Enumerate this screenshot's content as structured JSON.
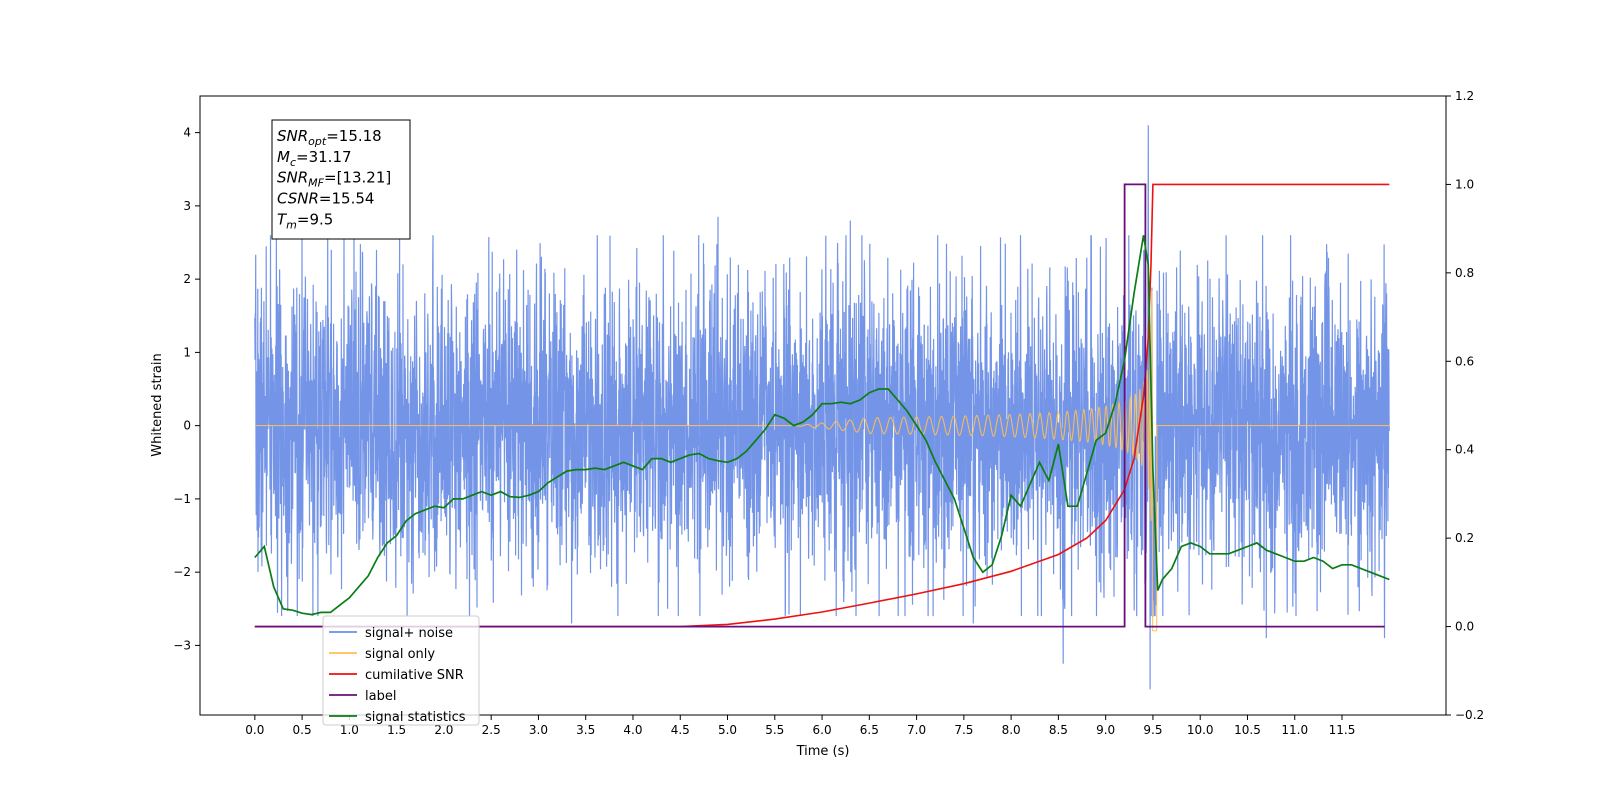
{
  "chart_data": {
    "type": "line",
    "title": "",
    "xlabel": "Time (s)",
    "ylabel": "Whitened strain",
    "xlim": [
      -0.58,
      12.6
    ],
    "ylim": [
      -3.95,
      4.5
    ],
    "y2lim": [
      -0.2,
      1.2
    ],
    "x_ticks": [
      0.0,
      0.5,
      1.0,
      1.5,
      2.0,
      2.5,
      3.0,
      3.5,
      4.0,
      4.5,
      5.0,
      5.5,
      6.0,
      6.5,
      7.0,
      7.5,
      8.0,
      8.5,
      9.0,
      9.5,
      10.0,
      10.5,
      11.0,
      11.5
    ],
    "x_tick_labels": [
      "0.0",
      "0.5",
      "1.0",
      "1.5",
      "2.0",
      "2.5",
      "3.0",
      "3.5",
      "4.0",
      "4.5",
      "5.0",
      "5.5",
      "6.0",
      "6.5",
      "7.0",
      "7.5",
      "8.0",
      "8.5",
      "9.0",
      "9.5",
      "10.0",
      "10.5",
      "11.0",
      "11.5"
    ],
    "y_ticks": [
      -3,
      -2,
      -1,
      0,
      1,
      2,
      3,
      4
    ],
    "y_tick_labels": [
      "−3",
      "−2",
      "−1",
      "0",
      "1",
      "2",
      "3",
      "4"
    ],
    "y2_ticks": [
      -0.2,
      0.0,
      0.2,
      0.4,
      0.6,
      0.8,
      1.0,
      1.2
    ],
    "y2_tick_labels": [
      "−0.2",
      "0.0",
      "0.2",
      "0.4",
      "0.6",
      "0.8",
      "1.0",
      "1.2"
    ],
    "grid": false,
    "legend_position": "lower-left",
    "annotation": {
      "lines": [
        {
          "sym": "SNR",
          "sub": "opt",
          "val": "=15.18"
        },
        {
          "sym": "M",
          "sub": "c",
          "val": "=31.17"
        },
        {
          "sym": "SNR",
          "sub": "MF",
          "val": "=[13.21]"
        },
        {
          "sym": "CSNR",
          "sub": "",
          "val": "=15.54"
        },
        {
          "sym": "T",
          "sub": "m",
          "val": "=9.5"
        }
      ]
    },
    "series": [
      {
        "name": "signal+ noise",
        "color": "#6c8ee6",
        "axis": "left",
        "kind": "noise",
        "x_range": [
          0.0,
          12.0
        ],
        "typical_amplitude": 1.3,
        "extremes": [
          {
            "x": 0.12,
            "y": 2.45
          },
          {
            "x": 0.45,
            "y": -2.6
          },
          {
            "x": 0.5,
            "y": 2.6
          },
          {
            "x": 3.35,
            "y": -2.7
          },
          {
            "x": 4.9,
            "y": 2.85
          },
          {
            "x": 6.3,
            "y": 2.8
          },
          {
            "x": 7.6,
            "y": -2.7
          },
          {
            "x": 8.55,
            "y": -3.25
          },
          {
            "x": 9.45,
            "y": 4.1
          },
          {
            "x": 9.47,
            "y": -3.6
          },
          {
            "x": 10.7,
            "y": -2.9
          },
          {
            "x": 11.95,
            "y": -2.9
          }
        ]
      },
      {
        "name": "signal only",
        "color": "#ffbf55",
        "axis": "left",
        "kind": "chirp",
        "x_start": 5.7,
        "x_merger": 9.5,
        "peak_amplitude": 3.3
      },
      {
        "name": "cumilative SNR",
        "color": "#ee1111",
        "axis": "right",
        "x": [
          0.0,
          4.5,
          5.0,
          5.5,
          6.0,
          6.5,
          7.0,
          7.5,
          8.0,
          8.5,
          8.8,
          9.0,
          9.2,
          9.3,
          9.4,
          9.45,
          9.48,
          9.5,
          12.0
        ],
        "values": [
          0.0,
          0.0,
          0.005,
          0.017,
          0.033,
          0.053,
          0.074,
          0.097,
          0.125,
          0.163,
          0.2,
          0.24,
          0.31,
          0.38,
          0.52,
          0.65,
          0.82,
          1.0,
          1.0
        ]
      },
      {
        "name": "label",
        "color": "#6a0f7a",
        "axis": "right",
        "x": [
          0.0,
          9.2,
          9.2,
          9.42,
          9.42,
          11.95
        ],
        "values": [
          0.0,
          0.0,
          1.0,
          1.0,
          0.0,
          0.0
        ]
      },
      {
        "name": "signal statistics",
        "color": "#0b7d15",
        "axis": "left",
        "x": [
          0.0,
          0.1,
          0.2,
          0.3,
          0.4,
          0.5,
          0.6,
          0.7,
          0.8,
          0.9,
          1.0,
          1.1,
          1.2,
          1.3,
          1.4,
          1.5,
          1.6,
          1.7,
          1.8,
          1.9,
          2.0,
          2.1,
          2.2,
          2.3,
          2.4,
          2.5,
          2.6,
          2.7,
          2.8,
          2.9,
          3.0,
          3.1,
          3.2,
          3.3,
          3.4,
          3.5,
          3.6,
          3.7,
          3.8,
          3.9,
          4.0,
          4.1,
          4.2,
          4.3,
          4.4,
          4.5,
          4.6,
          4.7,
          4.8,
          4.9,
          5.0,
          5.1,
          5.2,
          5.3,
          5.4,
          5.5,
          5.6,
          5.7,
          5.8,
          5.9,
          6.0,
          6.1,
          6.2,
          6.3,
          6.4,
          6.5,
          6.6,
          6.7,
          6.8,
          6.9,
          7.0,
          7.1,
          7.2,
          7.3,
          7.4,
          7.5,
          7.6,
          7.7,
          7.8,
          7.9,
          8.0,
          8.1,
          8.2,
          8.3,
          8.4,
          8.5,
          8.6,
          8.7,
          8.8,
          8.9,
          9.0,
          9.1,
          9.2,
          9.3,
          9.4,
          9.45,
          9.5,
          9.55,
          9.6,
          9.7,
          9.8,
          9.9,
          10.0,
          10.1,
          10.2,
          10.3,
          10.4,
          10.5,
          10.6,
          10.7,
          10.8,
          10.9,
          11.0,
          11.1,
          11.2,
          11.3,
          11.4,
          11.5,
          11.6,
          11.7,
          11.8,
          11.9,
          12.0
        ],
        "values": [
          -1.8,
          -1.65,
          -2.2,
          -2.5,
          -2.52,
          -2.56,
          -2.58,
          -2.55,
          -2.55,
          -2.45,
          -2.35,
          -2.2,
          -2.05,
          -1.8,
          -1.6,
          -1.5,
          -1.3,
          -1.2,
          -1.15,
          -1.1,
          -1.12,
          -1.0,
          -1.0,
          -0.95,
          -0.9,
          -0.95,
          -0.9,
          -0.97,
          -0.98,
          -0.95,
          -0.9,
          -0.78,
          -0.7,
          -0.62,
          -0.6,
          -0.6,
          -0.58,
          -0.6,
          -0.55,
          -0.5,
          -0.55,
          -0.6,
          -0.45,
          -0.45,
          -0.5,
          -0.45,
          -0.4,
          -0.38,
          -0.45,
          -0.48,
          -0.5,
          -0.45,
          -0.35,
          -0.2,
          -0.05,
          0.15,
          0.1,
          0.0,
          0.05,
          0.15,
          0.3,
          0.3,
          0.32,
          0.3,
          0.35,
          0.45,
          0.5,
          0.5,
          0.35,
          0.2,
          0.0,
          -0.2,
          -0.5,
          -0.75,
          -1.0,
          -1.4,
          -1.8,
          -2.0,
          -1.9,
          -1.5,
          -0.95,
          -1.1,
          -0.8,
          -0.5,
          -0.75,
          -0.25,
          -1.1,
          -1.1,
          -0.65,
          -0.2,
          -0.1,
          0.3,
          0.9,
          1.8,
          2.6,
          2.2,
          -0.6,
          -2.25,
          -2.1,
          -1.95,
          -1.65,
          -1.6,
          -1.65,
          -1.75,
          -1.75,
          -1.75,
          -1.7,
          -1.65,
          -1.6,
          -1.7,
          -1.75,
          -1.8,
          -1.85,
          -1.85,
          -1.8,
          -1.85,
          -1.95,
          -1.9,
          -1.9,
          -1.95,
          -2.0,
          -2.05,
          -2.1
        ]
      }
    ]
  }
}
